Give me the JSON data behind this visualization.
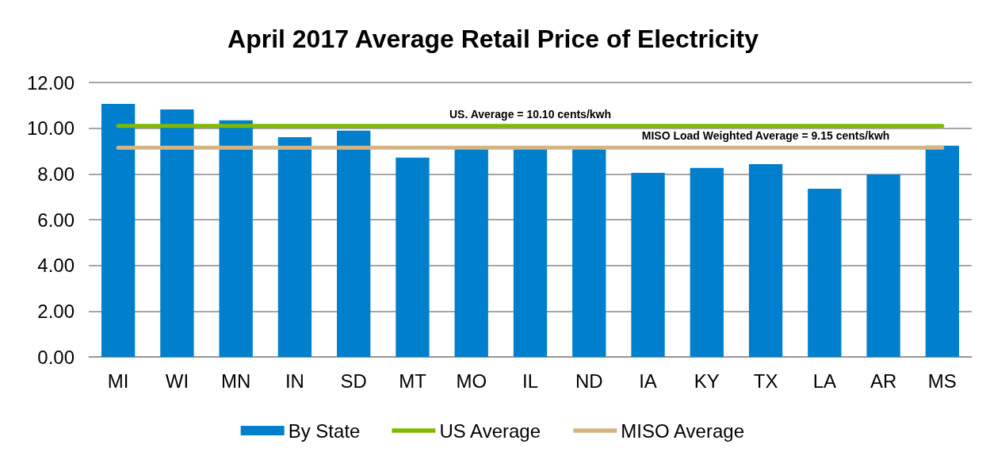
{
  "chart_data": {
    "type": "bar",
    "title": "April 2017 Average Retail Price of Electricity",
    "categories": [
      "MI",
      "WI",
      "MN",
      "IN",
      "SD",
      "MT",
      "MO",
      "IL",
      "ND",
      "IA",
      "KY",
      "TX",
      "LA",
      "AR",
      "MS"
    ],
    "series": [
      {
        "name": "By State",
        "color": "#0080cc",
        "values": [
          11.06,
          10.82,
          10.34,
          9.61,
          9.89,
          8.71,
          9.1,
          9.1,
          9.1,
          8.05,
          8.26,
          8.43,
          7.35,
          7.98,
          9.23
        ]
      },
      {
        "name": "US Average",
        "type": "line",
        "color": "#7fba00",
        "values": [
          10.1,
          10.1,
          10.1,
          10.1,
          10.1,
          10.1,
          10.1,
          10.1,
          10.1,
          10.1,
          10.1,
          10.1,
          10.1,
          10.1,
          10.1
        ]
      },
      {
        "name": "MISO Average",
        "type": "line",
        "color": "#d4b483",
        "values": [
          9.15,
          9.15,
          9.15,
          9.15,
          9.15,
          9.15,
          9.15,
          9.15,
          9.15,
          9.15,
          9.15,
          9.15,
          9.15,
          9.15,
          9.15
        ]
      }
    ],
    "annotations": [
      {
        "text": "US. Average = 10.10 cents/kwh",
        "x": "IL",
        "y": 10.1
      },
      {
        "text": "MISO Load Weighted Average = 9.15 cents/kwh",
        "x": "TX",
        "y": 9.15
      }
    ],
    "ylim": [
      0,
      12
    ],
    "yticks": [
      {
        "value": 0,
        "label": "0.00"
      },
      {
        "value": 2,
        "label": "2.00"
      },
      {
        "value": 4,
        "label": "4.00"
      },
      {
        "value": 6,
        "label": "6.00"
      },
      {
        "value": 8,
        "label": "8.00"
      },
      {
        "value": 10,
        "label": "10.00"
      },
      {
        "value": 12,
        "label": "12.00"
      }
    ],
    "grid": "y",
    "legend": "bottom",
    "marker": "none",
    "line_style": "solid"
  }
}
